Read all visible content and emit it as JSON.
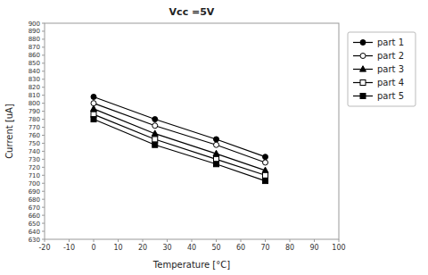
{
  "chart_data": {
    "type": "line",
    "title": "Vcc =5V",
    "xlabel": "Temperature [°C]",
    "ylabel": "Current [uA]",
    "x": [
      0,
      25,
      50,
      70
    ],
    "series": [
      {
        "name": "part 1",
        "color": "#000000",
        "marker": "circle",
        "values": [
          808,
          780,
          755,
          733
        ]
      },
      {
        "name": "part 2",
        "color": "#000000",
        "marker": "circle-open",
        "values": [
          800,
          772,
          748,
          726
        ]
      },
      {
        "name": "part 3",
        "color": "#000000",
        "marker": "triangle",
        "values": [
          793,
          762,
          737,
          716
        ]
      },
      {
        "name": "part 4",
        "color": "#000000",
        "marker": "square-open",
        "values": [
          786,
          755,
          730,
          710
        ]
      },
      {
        "name": "part 5",
        "color": "#000000",
        "marker": "square",
        "values": [
          780,
          748,
          724,
          703
        ]
      }
    ],
    "xlim": [
      -20,
      100
    ],
    "ylim": [
      630,
      900
    ],
    "xticks": [
      -20,
      -10,
      0,
      10,
      20,
      30,
      40,
      50,
      60,
      70,
      80,
      90,
      100
    ],
    "yticks": [
      630,
      640,
      650,
      660,
      670,
      680,
      690,
      700,
      710,
      720,
      730,
      740,
      750,
      760,
      770,
      780,
      790,
      800,
      810,
      820,
      830,
      840,
      850,
      860,
      870,
      880,
      890,
      900
    ],
    "grid": false,
    "legend": "right"
  }
}
